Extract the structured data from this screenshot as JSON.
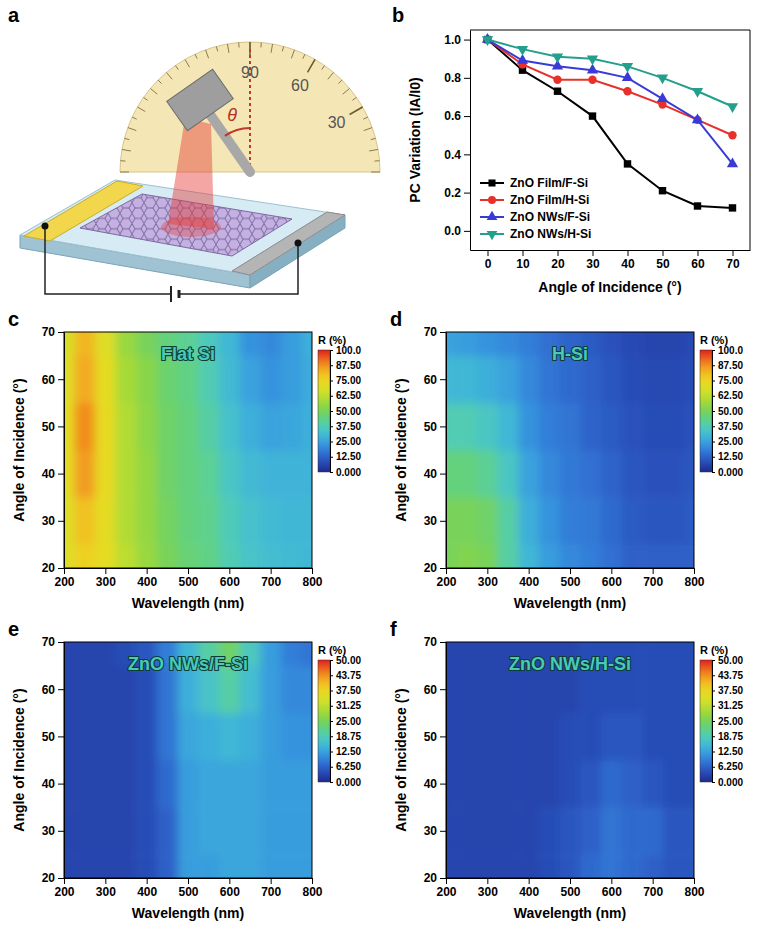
{
  "chart_data": [
    {
      "type": "diagram",
      "panel": "a",
      "scale_ticks": [
        90,
        60,
        30
      ],
      "angle_label": "θ"
    },
    {
      "type": "line",
      "panel": "b",
      "x_label": "Angle of Incidence (°)",
      "y_label": "PC Variation (IA/I0)",
      "x": [
        0,
        10,
        20,
        30,
        40,
        50,
        60,
        70
      ],
      "xlim": [
        -5,
        75
      ],
      "xticks": [
        0,
        10,
        20,
        30,
        40,
        50,
        60,
        70
      ],
      "ylim": [
        -0.1,
        1.05
      ],
      "yticks": [
        {
          "value": 0,
          "label": "0.0"
        },
        0.2,
        0.4,
        0.6,
        0.8,
        {
          "value": 1,
          "label": "1.0"
        }
      ],
      "legend": "lower-left",
      "series": [
        {
          "name": "ZnO Film/F-Si",
          "color": "#000000",
          "marker": "square",
          "values": [
            1.0,
            0.84,
            0.73,
            0.6,
            0.35,
            0.21,
            0.13,
            0.12
          ]
        },
        {
          "name": "ZnO Film/H-Si",
          "color": "#e8302a",
          "marker": "circle",
          "values": [
            1.0,
            0.87,
            0.79,
            0.79,
            0.73,
            0.66,
            0.58,
            0.5
          ]
        },
        {
          "name": "ZnO NWs/F-Si",
          "color": "#3a3ad6",
          "marker": "triangle-up",
          "values": [
            1.0,
            0.89,
            0.86,
            0.84,
            0.8,
            0.69,
            0.58,
            0.35
          ]
        },
        {
          "name": "ZnO NWs/H-Si",
          "color": "#23a08c",
          "marker": "triangle-down",
          "values": [
            1.0,
            0.95,
            0.91,
            0.9,
            0.86,
            0.8,
            0.73,
            0.65
          ]
        }
      ]
    },
    {
      "type": "heatmap",
      "panel": "c",
      "title": "Flat Si",
      "x_label": "Wavelength (nm)",
      "y_label": "Angle of Incidence (°)",
      "x": [
        200,
        250,
        300,
        350,
        400,
        450,
        500,
        550,
        600,
        650,
        700,
        750,
        800
      ],
      "y": [
        20,
        30,
        40,
        50,
        60,
        70
      ],
      "z": [
        [
          70,
          76,
          72,
          62,
          56,
          50,
          46,
          44,
          38,
          34,
          32,
          31,
          30
        ],
        [
          70,
          80,
          72,
          60,
          55,
          49,
          45,
          43,
          37,
          33,
          31,
          30,
          30
        ],
        [
          72,
          86,
          73,
          60,
          55,
          48,
          45,
          42,
          35,
          31,
          29,
          29,
          29
        ],
        [
          72,
          88,
          73,
          60,
          54,
          48,
          45,
          40,
          33,
          28,
          25,
          26,
          28
        ],
        [
          70,
          84,
          72,
          58,
          53,
          47,
          44,
          38,
          31,
          25,
          22,
          24,
          27
        ],
        [
          68,
          82,
          70,
          56,
          50,
          45,
          42,
          36,
          30,
          22,
          20,
          24,
          28
        ]
      ],
      "xlim": [
        200,
        800
      ],
      "xticks": [
        200,
        300,
        400,
        500,
        600,
        700,
        800
      ],
      "ylim": [
        20,
        70
      ],
      "yticks": [
        20,
        30,
        40,
        50,
        60,
        70
      ],
      "colorbar_label": "R (%)",
      "colorbar_range": [
        0,
        100
      ],
      "colorbar_ticks": [
        {
          "value": 0,
          "label": "0.000"
        },
        {
          "value": 12.5,
          "label": "12.50"
        },
        {
          "value": 25,
          "label": "25.00"
        },
        {
          "value": 37.5,
          "label": "37.50"
        },
        {
          "value": 50,
          "label": "50.00"
        },
        {
          "value": 62.5,
          "label": "62.50"
        },
        {
          "value": 75,
          "label": "75.00"
        },
        {
          "value": 87.5,
          "label": "87.50"
        },
        {
          "value": 100,
          "label": "100.0"
        }
      ]
    },
    {
      "type": "heatmap",
      "panel": "d",
      "title": "H-Si",
      "x_label": "Wavelength (nm)",
      "y_label": "Angle of Incidence (°)",
      "x": [
        200,
        250,
        300,
        350,
        400,
        450,
        500,
        550,
        600,
        650,
        700,
        750,
        800
      ],
      "y": [
        20,
        30,
        40,
        50,
        60,
        70
      ],
      "z": [
        [
          50,
          52,
          50,
          40,
          30,
          24,
          20,
          18,
          15,
          12,
          12,
          12,
          12
        ],
        [
          50,
          50,
          48,
          40,
          28,
          22,
          18,
          17,
          14,
          11,
          10,
          10,
          11
        ],
        [
          45,
          45,
          42,
          35,
          25,
          20,
          17,
          15,
          13,
          10,
          9,
          9,
          10
        ],
        [
          38,
          38,
          35,
          30,
          22,
          18,
          16,
          13,
          11,
          9,
          8,
          8,
          9
        ],
        [
          30,
          30,
          28,
          25,
          20,
          16,
          14,
          12,
          10,
          8,
          7,
          7,
          8
        ],
        [
          25,
          24,
          22,
          20,
          18,
          15,
          13,
          11,
          9,
          7,
          6,
          6,
          7
        ]
      ],
      "xlim": [
        200,
        800
      ],
      "xticks": [
        200,
        300,
        400,
        500,
        600,
        700,
        800
      ],
      "ylim": [
        20,
        70
      ],
      "yticks": [
        20,
        30,
        40,
        50,
        60,
        70
      ],
      "colorbar_label": "R (%)",
      "colorbar_range": [
        0,
        100
      ],
      "colorbar_ticks": [
        {
          "value": 0,
          "label": "0.000"
        },
        {
          "value": 12.5,
          "label": "12.50"
        },
        {
          "value": 25,
          "label": "25.00"
        },
        {
          "value": 37.5,
          "label": "37.50"
        },
        {
          "value": 50,
          "label": "50.00"
        },
        {
          "value": 62.5,
          "label": "62.50"
        },
        {
          "value": 75,
          "label": "75.00"
        },
        {
          "value": 87.5,
          "label": "87.50"
        },
        {
          "value": 100,
          "label": "100.0"
        }
      ]
    },
    {
      "type": "heatmap",
      "panel": "e",
      "title": "ZnO NWs/F-Si",
      "x_label": "Wavelength (nm)",
      "y_label": "Angle of Incidence (°)",
      "x": [
        200,
        250,
        300,
        350,
        400,
        450,
        500,
        550,
        600,
        650,
        700,
        750,
        800
      ],
      "y": [
        20,
        30,
        40,
        50,
        60,
        70
      ],
      "z": [
        [
          3,
          3,
          3,
          3,
          4,
          6,
          12,
          12,
          13,
          13,
          12,
          12,
          12
        ],
        [
          3,
          3,
          3,
          3,
          4,
          6,
          12,
          13,
          13,
          13,
          12,
          12,
          12
        ],
        [
          3,
          3,
          3,
          3,
          4,
          7,
          12,
          13,
          13,
          13,
          12,
          12,
          12
        ],
        [
          3,
          3,
          3,
          3,
          4,
          8,
          13,
          14,
          15,
          14,
          12,
          11,
          11
        ],
        [
          3,
          3,
          3,
          3,
          4,
          8,
          14,
          17,
          20,
          16,
          12,
          10,
          10
        ],
        [
          3,
          3,
          3,
          4,
          5,
          9,
          15,
          20,
          24,
          18,
          12,
          9,
          8
        ]
      ],
      "xlim": [
        200,
        800
      ],
      "xticks": [
        200,
        300,
        400,
        500,
        600,
        700,
        800
      ],
      "ylim": [
        20,
        70
      ],
      "yticks": [
        20,
        30,
        40,
        50,
        60,
        70
      ],
      "colorbar_label": "R (%)",
      "colorbar_range": [
        0,
        50
      ],
      "colorbar_ticks": [
        {
          "value": 0,
          "label": "0.000"
        },
        {
          "value": 6.25,
          "label": "6.250"
        },
        {
          "value": 12.5,
          "label": "12.50"
        },
        18.75,
        {
          "value": 25,
          "label": "25.00"
        },
        31.25,
        {
          "value": 37.5,
          "label": "37.50"
        },
        43.75,
        {
          "value": 50,
          "label": "50.00"
        }
      ]
    },
    {
      "type": "heatmap",
      "panel": "f",
      "title": "ZnO NWs/H-Si",
      "x_label": "Wavelength (nm)",
      "y_label": "Angle of Incidence (°)",
      "x": [
        200,
        250,
        300,
        350,
        400,
        450,
        500,
        550,
        600,
        650,
        700,
        750,
        800
      ],
      "y": [
        20,
        30,
        40,
        50,
        60,
        70
      ],
      "z": [
        [
          3,
          3,
          3,
          3,
          3,
          4,
          5,
          7,
          8,
          7,
          6,
          5,
          5
        ],
        [
          3,
          3,
          3,
          3,
          3,
          4,
          5,
          6,
          8,
          7,
          7,
          5,
          5
        ],
        [
          3,
          3,
          3,
          3,
          3,
          3,
          4,
          5,
          7,
          6,
          5,
          4,
          4
        ],
        [
          3,
          3,
          3,
          3,
          3,
          3,
          4,
          4,
          5,
          5,
          4,
          4,
          4
        ],
        [
          3,
          3,
          3,
          3,
          3,
          3,
          3,
          4,
          4,
          4,
          4,
          4,
          4
        ],
        [
          3,
          3,
          3,
          3,
          3,
          3,
          3,
          4,
          4,
          4,
          4,
          4,
          4
        ]
      ],
      "xlim": [
        200,
        800
      ],
      "xticks": [
        200,
        300,
        400,
        500,
        600,
        700,
        800
      ],
      "ylim": [
        20,
        70
      ],
      "yticks": [
        20,
        30,
        40,
        50,
        60,
        70
      ],
      "colorbar_label": "R (%)",
      "colorbar_range": [
        0,
        50
      ],
      "colorbar_ticks": [
        {
          "value": 0,
          "label": "0.000"
        },
        {
          "value": 6.25,
          "label": "6.250"
        },
        {
          "value": 12.5,
          "label": "12.50"
        },
        18.75,
        {
          "value": 25,
          "label": "25.00"
        },
        31.25,
        {
          "value": 37.5,
          "label": "37.50"
        },
        43.75,
        {
          "value": 50,
          "label": "50.00"
        }
      ]
    }
  ]
}
